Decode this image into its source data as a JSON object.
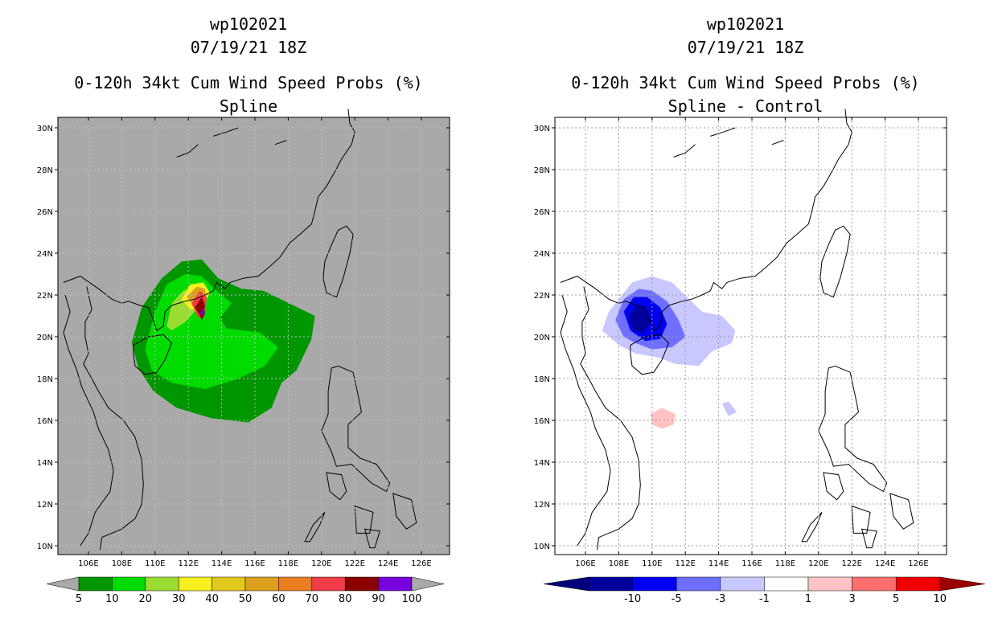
{
  "left": {
    "title_id": "wp102021",
    "title_date": "07/19/21 18Z",
    "title_product": "0-120h 34kt Cum Wind Speed Probs (%)",
    "title_sub": "Spline",
    "background": "#a9a9a9",
    "colorbar": {
      "colors": [
        "#009600",
        "#00dc00",
        "#9bdc32",
        "#f5f01e",
        "#e1c81e",
        "#dca01e",
        "#eb7d23",
        "#f03c46",
        "#8c0000",
        "#7800dc"
      ],
      "labels": [
        "5",
        "10",
        "20",
        "30",
        "40",
        "50",
        "60",
        "70",
        "80",
        "90",
        "100"
      ],
      "end_color": "#a9a9a9"
    }
  },
  "right": {
    "title_id": "wp102021",
    "title_date": "07/19/21 18Z",
    "title_product": "0-120h 34kt Cum Wind Speed Probs (%)",
    "title_sub": "Spline - Control",
    "background": "#ffffff",
    "colorbar": {
      "colors": [
        "#00009b",
        "#0000f0",
        "#6e6eff",
        "#c8c8ff",
        "#ffffff",
        "#ffc3c3",
        "#ff6e6e",
        "#f00000",
        "#9b0000"
      ],
      "labels": [
        "-10",
        "-5",
        "-3",
        "-1",
        "1",
        "3",
        "5",
        "10"
      ],
      "left_end_color": "#00007a",
      "right_end_color": "#7a0000"
    }
  },
  "map": {
    "lat_labels": [
      "30N",
      "28N",
      "26N",
      "24N",
      "22N",
      "20N",
      "18N",
      "16N",
      "14N",
      "12N",
      "10N"
    ],
    "lon_labels": [
      "106E",
      "108E",
      "110E",
      "112E",
      "114E",
      "116E",
      "118E",
      "120E",
      "122E",
      "124E",
      "126E"
    ]
  }
}
